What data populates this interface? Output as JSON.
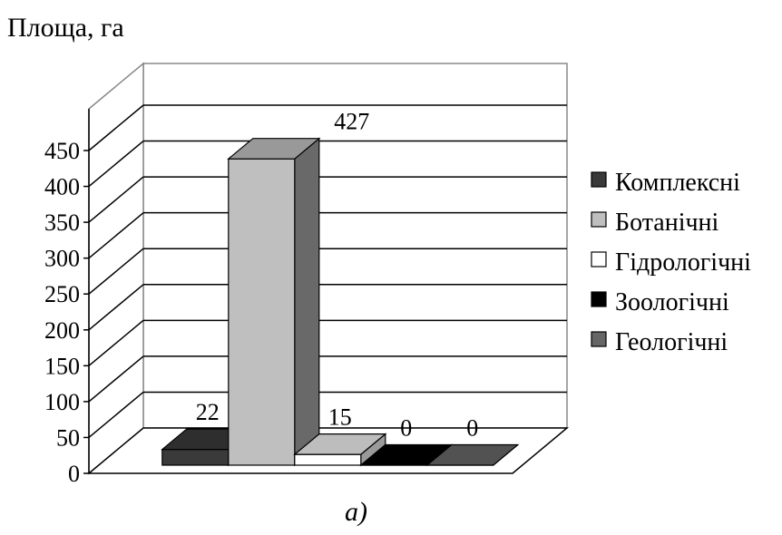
{
  "chart_data": {
    "type": "bar",
    "title": "",
    "ylabel": "Площа, га",
    "xlabel": "",
    "ylim": [
      0,
      450
    ],
    "ytick_step": 50,
    "grid": true,
    "legend_position": "right",
    "categories": [
      "Комплексні",
      "Ботанічні",
      "Гідрологічні",
      "Зоологічні",
      "Геологічні"
    ],
    "series": [
      {
        "values": [
          22,
          427,
          15,
          0,
          0
        ],
        "colors": [
          "#3a3a3a",
          "#bfbfbf",
          "#ffffff",
          "#000000",
          "#666666"
        ]
      }
    ],
    "data_labels": [
      "22",
      "427",
      "15",
      "0",
      "0"
    ]
  },
  "caption": "а)"
}
